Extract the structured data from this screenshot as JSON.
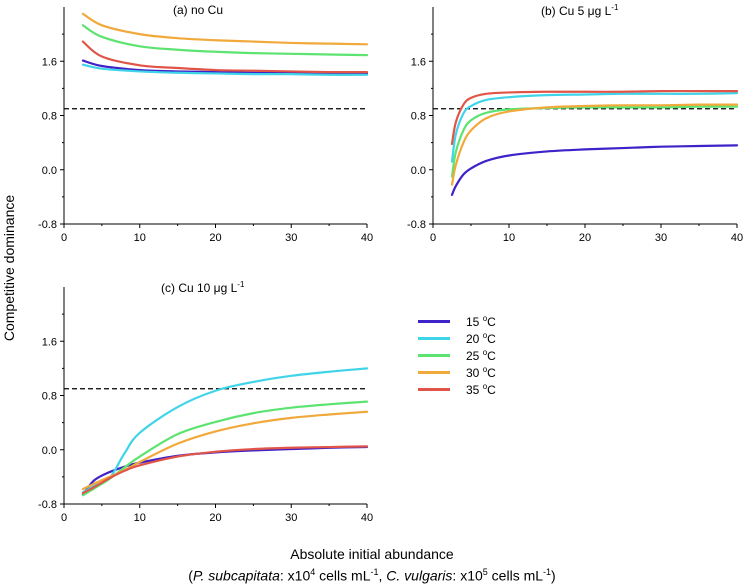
{
  "y_axis_label": "Competitive dominance",
  "x_axis_label": {
    "line1": "Absolute initial abundance",
    "line2_open": "(",
    "species1": "P. subcapitata",
    "species1_unit": ": x10",
    "species1_exp": "4",
    "species1_unit2": " cells mL",
    "species1_unit2_exp": "-1",
    "sep": ", ",
    "species2": "C. vulgaris",
    "species2_unit": ": x10",
    "species2_exp": "5",
    "species2_unit2": " cells mL",
    "species2_unit2_exp": "-1",
    "line2_close": ")"
  },
  "legend": [
    {
      "label": "15 ",
      "deg": "o",
      "unit": "C",
      "color": "#3f22c8"
    },
    {
      "label": "20 ",
      "deg": "o",
      "unit": "C",
      "color": "#40d4e8"
    },
    {
      "label": "25 ",
      "deg": "o",
      "unit": "C",
      "color": "#5de370"
    },
    {
      "label": "30 ",
      "deg": "o",
      "unit": "C",
      "color": "#f0a93a"
    },
    {
      "label": "35 ",
      "deg": "o",
      "unit": "C",
      "color": "#e05548"
    }
  ],
  "panel_titles": {
    "a": {
      "text": "(a) no Cu",
      "sup": ""
    },
    "b": {
      "text": "(b) Cu 5 μg L",
      "sup": "-1"
    },
    "c": {
      "text": "(c) Cu 10 μg L",
      "sup": "-1"
    }
  },
  "chart_data": [
    {
      "type": "line",
      "panel": "a",
      "title": "(a) no Cu",
      "xlim": [
        0,
        40
      ],
      "ylim": [
        -0.8,
        2.4
      ],
      "xticks": [
        0,
        10,
        20,
        30,
        40
      ],
      "yticks": [
        "-0.8",
        "0.0",
        "0.8",
        "1.6"
      ],
      "reference_line_y": 0.9,
      "x": [
        2.5,
        5,
        10,
        15,
        20,
        25,
        30,
        35,
        40
      ],
      "series": [
        {
          "name": "15 °C",
          "values": [
            1.61,
            1.53,
            1.47,
            1.45,
            1.44,
            1.43,
            1.43,
            1.42,
            1.42
          ]
        },
        {
          "name": "20 °C",
          "values": [
            1.55,
            1.49,
            1.45,
            1.43,
            1.42,
            1.41,
            1.41,
            1.4,
            1.4
          ]
        },
        {
          "name": "25 °C",
          "values": [
            2.13,
            1.96,
            1.82,
            1.77,
            1.74,
            1.72,
            1.71,
            1.7,
            1.69
          ]
        },
        {
          "name": "30 °C",
          "values": [
            2.3,
            2.13,
            2.0,
            1.94,
            1.91,
            1.89,
            1.87,
            1.86,
            1.85
          ]
        },
        {
          "name": "35 °C",
          "values": [
            1.89,
            1.67,
            1.54,
            1.5,
            1.47,
            1.46,
            1.45,
            1.44,
            1.44
          ]
        }
      ]
    },
    {
      "type": "line",
      "panel": "b",
      "title": "(b) Cu 5 μg L-1",
      "xlim": [
        0,
        40
      ],
      "ylim": [
        -0.8,
        2.4
      ],
      "xticks": [
        0,
        10,
        20,
        30,
        40
      ],
      "yticks": [
        "-0.8",
        "0.0",
        "0.8",
        "1.6"
      ],
      "reference_line_y": 0.9,
      "x": [
        2.5,
        3,
        4,
        5,
        7,
        10,
        15,
        20,
        25,
        30,
        35,
        40
      ],
      "series": [
        {
          "name": "15 °C",
          "values": [
            -0.37,
            -0.24,
            -0.07,
            0.02,
            0.13,
            0.21,
            0.27,
            0.3,
            0.32,
            0.34,
            0.35,
            0.36
          ]
        },
        {
          "name": "20 °C",
          "values": [
            0.12,
            0.52,
            0.83,
            0.94,
            1.03,
            1.07,
            1.1,
            1.11,
            1.12,
            1.12,
            1.12,
            1.13
          ]
        },
        {
          "name": "25 °C",
          "values": [
            -0.1,
            0.26,
            0.58,
            0.73,
            0.84,
            0.89,
            0.91,
            0.92,
            0.92,
            0.92,
            0.93,
            0.93
          ]
        },
        {
          "name": "30 °C",
          "values": [
            -0.22,
            0.07,
            0.4,
            0.58,
            0.76,
            0.86,
            0.92,
            0.94,
            0.95,
            0.95,
            0.96,
            0.96
          ]
        },
        {
          "name": "35 °C",
          "values": [
            0.38,
            0.7,
            0.96,
            1.06,
            1.12,
            1.14,
            1.15,
            1.15,
            1.15,
            1.16,
            1.16,
            1.16
          ]
        }
      ]
    },
    {
      "type": "line",
      "panel": "c",
      "title": "(c) Cu 10 μg L-1",
      "xlim": [
        0,
        40
      ],
      "ylim": [
        -0.8,
        2.4
      ],
      "xticks": [
        0,
        10,
        20,
        30,
        40
      ],
      "yticks": [
        "-0.8",
        "0.0",
        "0.8",
        "1.6"
      ],
      "reference_line_y": 0.9,
      "x": [
        2.5,
        4,
        6,
        8,
        10,
        15,
        20,
        25,
        30,
        35,
        40
      ],
      "series": [
        {
          "name": "15 °C",
          "values": [
            -0.66,
            -0.45,
            -0.33,
            -0.25,
            -0.19,
            -0.09,
            -0.04,
            -0.01,
            0.01,
            0.03,
            0.04
          ]
        },
        {
          "name": "20 °C",
          "values": [
            -0.63,
            -0.53,
            -0.42,
            -0.05,
            0.25,
            0.63,
            0.87,
            1.0,
            1.09,
            1.15,
            1.2
          ]
        },
        {
          "name": "25 °C",
          "values": [
            -0.67,
            -0.57,
            -0.43,
            -0.26,
            -0.1,
            0.23,
            0.41,
            0.54,
            0.62,
            0.67,
            0.71
          ]
        },
        {
          "name": "30 °C",
          "values": [
            -0.58,
            -0.5,
            -0.4,
            -0.3,
            -0.18,
            0.09,
            0.27,
            0.39,
            0.47,
            0.52,
            0.56
          ]
        },
        {
          "name": "35 °C",
          "values": [
            -0.64,
            -0.55,
            -0.42,
            -0.31,
            -0.23,
            -0.1,
            -0.03,
            0.01,
            0.03,
            0.04,
            0.05
          ]
        }
      ]
    }
  ]
}
